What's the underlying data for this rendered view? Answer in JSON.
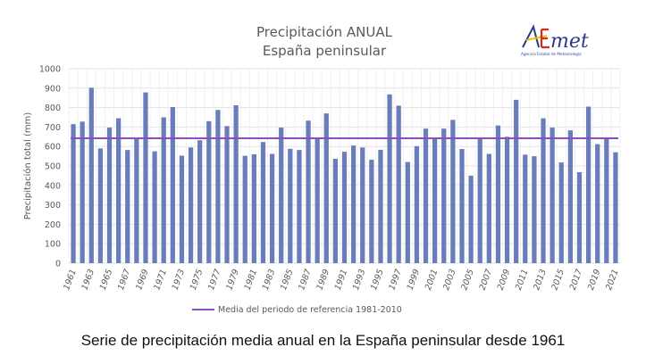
{
  "logo": {
    "name": "AEMet",
    "subtitle": "Agencia Estatal de Meteorología"
  },
  "caption": "Serie de precipitación media anual en la España peninsular desde 1961",
  "colors": {
    "bar": "#6a7dbb",
    "mean_line": "#8a4fbf",
    "grid": "#e3e3e3",
    "text": "#595959"
  },
  "chart_data": {
    "type": "bar",
    "title": [
      "Precipitación ANUAL",
      "España peninsular"
    ],
    "xlabel": "",
    "ylabel": "Precipitación total (mm)",
    "ylim": [
      0,
      1000
    ],
    "yticks": [
      0,
      100,
      200,
      300,
      400,
      500,
      600,
      700,
      800,
      900,
      1000
    ],
    "grid": true,
    "legend_position": "bottom",
    "categories": [
      "1961",
      "1962",
      "1963",
      "1964",
      "1965",
      "1966",
      "1967",
      "1968",
      "1969",
      "1970",
      "1971",
      "1972",
      "1973",
      "1974",
      "1975",
      "1976",
      "1977",
      "1978",
      "1979",
      "1980",
      "1981",
      "1982",
      "1983",
      "1984",
      "1985",
      "1986",
      "1987",
      "1988",
      "1989",
      "1990",
      "1991",
      "1992",
      "1993",
      "1994",
      "1995",
      "1996",
      "1997",
      "1998",
      "1999",
      "2000",
      "2001",
      "2002",
      "2003",
      "2004",
      "2005",
      "2006",
      "2007",
      "2008",
      "2009",
      "2010",
      "2011",
      "2012",
      "2013",
      "2014",
      "2015",
      "2016",
      "2017",
      "2018",
      "2019",
      "2020",
      "2021"
    ],
    "xtick_labels": [
      "1961",
      "1963",
      "1965",
      "1967",
      "1969",
      "1971",
      "1973",
      "1975",
      "1977",
      "1979",
      "1981",
      "1983",
      "1985",
      "1987",
      "1989",
      "1991",
      "1993",
      "1995",
      "1997",
      "1999",
      "2001",
      "2003",
      "2005",
      "2007",
      "2009",
      "2011",
      "2013",
      "2015",
      "2017",
      "2019",
      "2021"
    ],
    "series": [
      {
        "name": "Precipitación anual",
        "values": [
          715,
          728,
          902,
          590,
          697,
          745,
          582,
          638,
          878,
          575,
          750,
          803,
          553,
          595,
          632,
          730,
          788,
          705,
          812,
          552,
          560,
          623,
          562,
          697,
          588,
          582,
          733,
          640,
          770,
          537,
          573,
          605,
          595,
          532,
          583,
          868,
          810,
          520,
          602,
          692,
          642,
          692,
          737,
          587,
          450,
          642,
          562,
          708,
          650,
          840,
          558,
          550,
          745,
          697,
          518,
          683,
          468,
          805,
          612,
          640,
          570
        ]
      }
    ],
    "reference_line": {
      "name": "Media del periodo de referencia 1981-2010",
      "value": 642
    }
  }
}
